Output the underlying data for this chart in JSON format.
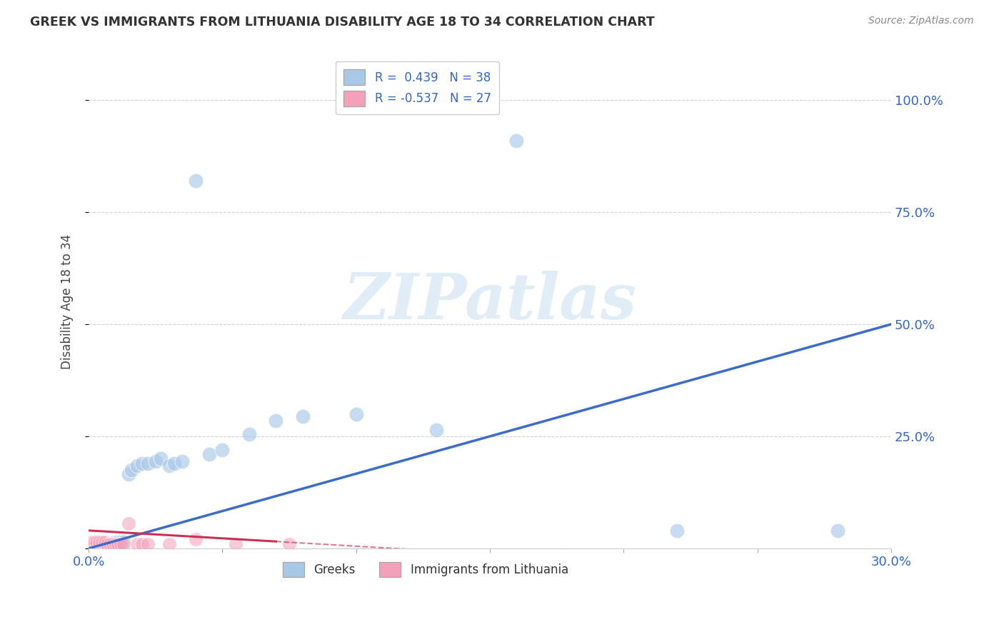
{
  "title": "GREEK VS IMMIGRANTS FROM LITHUANIA DISABILITY AGE 18 TO 34 CORRELATION CHART",
  "source": "Source: ZipAtlas.com",
  "ylabel": "Disability Age 18 to 34",
  "xlim": [
    0.0,
    0.3
  ],
  "ylim": [
    0.0,
    1.1
  ],
  "blue_color": "#a8c8e8",
  "pink_color": "#f4a0b8",
  "trend_blue": "#3a6bcd",
  "trend_pink": "#cc3055",
  "watermark": "ZIPatlas",
  "greek_R": 0.439,
  "greek_N": 38,
  "lith_R": -0.537,
  "lith_N": 27,
  "greek_x": [
    0.001,
    0.002,
    0.002,
    0.003,
    0.003,
    0.004,
    0.004,
    0.005,
    0.005,
    0.006,
    0.007,
    0.008,
    0.009,
    0.01,
    0.011,
    0.012,
    0.013,
    0.015,
    0.016,
    0.018,
    0.02,
    0.022,
    0.025,
    0.027,
    0.03,
    0.032,
    0.035,
    0.04,
    0.045,
    0.05,
    0.06,
    0.07,
    0.08,
    0.1,
    0.13,
    0.16,
    0.22,
    0.28
  ],
  "greek_y": [
    0.005,
    0.005,
    0.008,
    0.005,
    0.008,
    0.007,
    0.01,
    0.008,
    0.012,
    0.01,
    0.01,
    0.01,
    0.012,
    0.012,
    0.015,
    0.015,
    0.015,
    0.165,
    0.175,
    0.185,
    0.19,
    0.19,
    0.195,
    0.2,
    0.185,
    0.19,
    0.195,
    0.82,
    0.21,
    0.22,
    0.255,
    0.285,
    0.295,
    0.3,
    0.265,
    0.91,
    0.04,
    0.04
  ],
  "lith_x": [
    0.001,
    0.001,
    0.002,
    0.002,
    0.003,
    0.003,
    0.004,
    0.004,
    0.005,
    0.005,
    0.006,
    0.006,
    0.007,
    0.008,
    0.009,
    0.01,
    0.011,
    0.012,
    0.013,
    0.015,
    0.018,
    0.02,
    0.022,
    0.03,
    0.04,
    0.055,
    0.075
  ],
  "lith_y": [
    0.01,
    0.015,
    0.01,
    0.015,
    0.01,
    0.015,
    0.01,
    0.015,
    0.01,
    0.015,
    0.01,
    0.015,
    0.01,
    0.01,
    0.01,
    0.01,
    0.01,
    0.01,
    0.01,
    0.055,
    0.01,
    0.01,
    0.01,
    0.01,
    0.02,
    0.01,
    0.01
  ]
}
